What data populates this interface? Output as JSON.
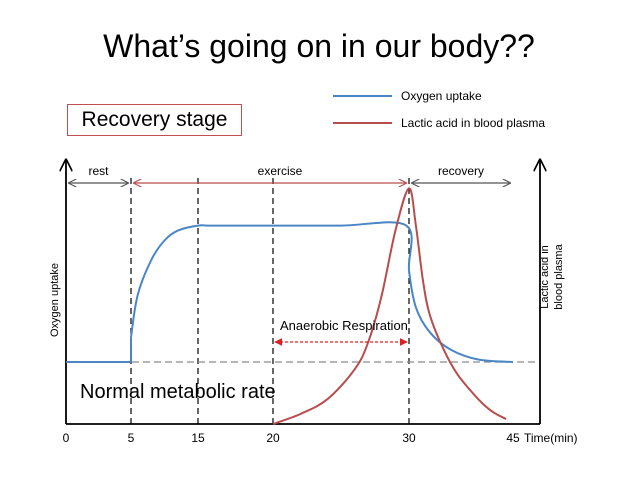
{
  "title": "What’s going on in our body??",
  "stage_label": "Recovery stage",
  "legend": [
    {
      "label": "Oxygen uptake",
      "color": "#4a86c6"
    },
    {
      "label": "Lactic acid in blood plasma",
      "color": "#b64e4c"
    }
  ],
  "phases": [
    {
      "label": "rest",
      "from": 0,
      "to": 5
    },
    {
      "label": "exercise",
      "from": 5,
      "to": 30
    },
    {
      "label": "recovery",
      "from": 30,
      "to": 45
    }
  ],
  "annotations": {
    "anaerobic": "Anaerobic Respiration",
    "normal": "Normal metabolic rate"
  },
  "chart_data": {
    "type": "line",
    "title": "What’s going on in our body??",
    "xlabel": "Time(min)",
    "ylabel": "Oxygen uptake",
    "ylabel_right": "Lactic acid in blood plasma",
    "x_ticks": [
      "0",
      "5",
      "15",
      "20",
      "30",
      "45"
    ],
    "x_tick_positions": [
      0,
      5,
      15,
      20,
      30,
      45
    ],
    "grid": false,
    "legend_position": "top-right",
    "baseline_label": "Normal metabolic rate",
    "baseline_value": 0.25,
    "series": [
      {
        "name": "Oxygen uptake",
        "color": "#4a86c6",
        "x": [
          0,
          5,
          5,
          6,
          8,
          10,
          12,
          15,
          16,
          20,
          25,
          29.8,
          30,
          31,
          33,
          36,
          40,
          45
        ],
        "y": [
          0.25,
          0.25,
          0.35,
          0.52,
          0.66,
          0.74,
          0.78,
          0.8,
          0.8,
          0.8,
          0.8,
          0.8,
          0.62,
          0.47,
          0.37,
          0.3,
          0.26,
          0.25
        ]
      },
      {
        "name": "Lactic acid in blood plasma",
        "color": "#b64e4c",
        "x": [
          20,
          22,
          24,
          26,
          27,
          28,
          29,
          30,
          31,
          32,
          33,
          35,
          37,
          40,
          42,
          44
        ],
        "y": [
          0.0,
          0.04,
          0.1,
          0.22,
          0.33,
          0.52,
          0.78,
          0.95,
          0.8,
          0.58,
          0.44,
          0.3,
          0.2,
          0.1,
          0.05,
          0.02
        ]
      }
    ]
  }
}
